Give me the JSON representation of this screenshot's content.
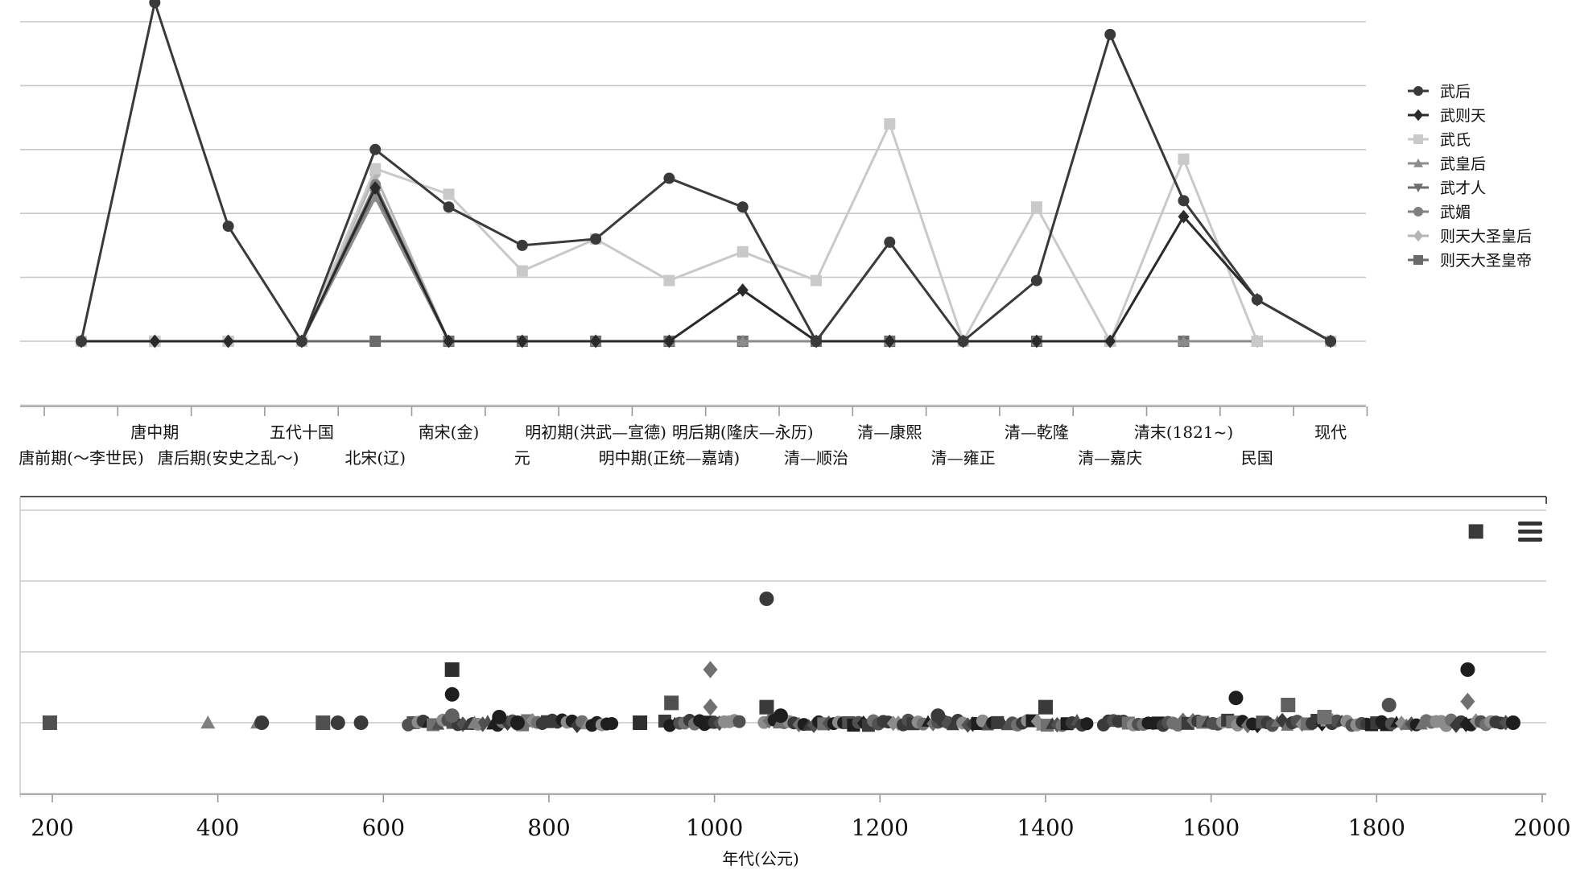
{
  "chart_data": [
    {
      "type": "line",
      "categories": [
        "唐前期(～李世民)",
        "唐中期",
        "唐后期(安史之乱～)",
        "五代十国",
        "北宋(辽)",
        "南宋(金)",
        "元",
        "明初期(洪武—宣德)",
        "明中期(正统—嘉靖)",
        "明后期(隆庆—永历)",
        "清—顺治",
        "清—康熙",
        "清—雍正",
        "清—乾隆",
        "清—嘉庆",
        "清末(1821~)",
        "民国",
        "现代"
      ],
      "ylim": [
        -1,
        5.3
      ],
      "grid": true,
      "legend_position": "right",
      "series": [
        {
          "name": "武后",
          "color": "#3a3a3a",
          "marker": "circle",
          "values": [
            0,
            5.3,
            1.8,
            0,
            3,
            2.1,
            1.5,
            1.6,
            2.55,
            2.1,
            0,
            1.55,
            0,
            0.95,
            4.8,
            2.2,
            0.65,
            0
          ]
        },
        {
          "name": "武则天",
          "color": "#2a2a2a",
          "marker": "diamond",
          "values": [
            0,
            0,
            0,
            0,
            2.4,
            0,
            0,
            0,
            0,
            0.8,
            0,
            0,
            0,
            0,
            0,
            1.95,
            0.65,
            0
          ]
        },
        {
          "name": "武氏",
          "color": "#c9c9c9",
          "marker": "square",
          "values": [
            0,
            0,
            0,
            0,
            2.7,
            2.3,
            1.1,
            1.6,
            0.95,
            1.4,
            0.95,
            3.4,
            0,
            2.1,
            0,
            2.85,
            0,
            0
          ]
        },
        {
          "name": "武皇后",
          "color": "#8c8c8c",
          "marker": "triangle",
          "values": [
            0,
            0,
            0,
            0,
            2.25,
            0,
            0,
            0,
            0,
            0,
            0,
            0,
            0,
            0,
            0,
            0,
            0,
            0
          ]
        },
        {
          "name": "武才人",
          "color": "#6e6e6e",
          "marker": "triangle-down",
          "values": [
            0,
            0,
            0,
            0,
            2.3,
            0,
            0,
            0,
            0,
            0,
            0,
            0,
            0,
            0,
            0,
            0,
            0,
            0
          ]
        },
        {
          "name": "武媚",
          "color": "#808080",
          "marker": "circle",
          "values": [
            0,
            0,
            0,
            0,
            2.45,
            0,
            0,
            0,
            0,
            0,
            0,
            0,
            0,
            0,
            0,
            0,
            0,
            0
          ]
        },
        {
          "name": "则天大圣皇后",
          "color": "#b5b5b5",
          "marker": "diamond",
          "values": [
            0,
            0,
            0,
            0,
            2.6,
            0,
            0,
            0,
            0,
            0,
            0,
            0,
            0,
            0,
            0,
            0,
            0,
            0
          ]
        },
        {
          "name": "则天大圣皇帝",
          "color": "#6a6a6a",
          "marker": "square",
          "values": [
            0,
            0,
            0,
            0,
            0,
            0,
            0,
            0,
            0,
            0,
            0,
            0,
            0,
            0,
            0,
            0,
            0,
            0
          ]
        }
      ]
    },
    {
      "type": "scatter",
      "xlabel": "年代(公元)",
      "xlim": [
        180,
        2000
      ],
      "ylim": [
        -1,
        3.3
      ],
      "xticks": [
        200,
        400,
        600,
        800,
        1000,
        1200,
        1400,
        1600,
        1800,
        2000
      ],
      "grid": true,
      "points": [
        {
          "x": 197,
          "y": 0,
          "m": "square",
          "c": "#505050"
        },
        {
          "x": 388,
          "y": 0,
          "m": "triangle",
          "c": "#808080"
        },
        {
          "x": 448,
          "y": 0,
          "m": "triangle",
          "c": "#808080"
        },
        {
          "x": 453,
          "y": 0,
          "m": "circle",
          "c": "#3a3a3a"
        },
        {
          "x": 527,
          "y": 0,
          "m": "square",
          "c": "#505050"
        },
        {
          "x": 545,
          "y": 0,
          "m": "circle",
          "c": "#3a3a3a"
        },
        {
          "x": 573,
          "y": 0,
          "m": "circle",
          "c": "#3a3a3a"
        },
        {
          "x": 683,
          "y": 0.75,
          "m": "square",
          "c": "#2e2e2e"
        },
        {
          "x": 683,
          "y": 0.4,
          "m": "circle",
          "c": "#1e1e1e"
        },
        {
          "x": 683,
          "y": 0.1,
          "m": "circle",
          "c": "#606060"
        },
        {
          "x": 710,
          "y": 0,
          "m": "triangle",
          "c": "#808080"
        },
        {
          "x": 740,
          "y": 0.08,
          "m": "circle",
          "c": "#1e1e1e"
        },
        {
          "x": 762,
          "y": 0,
          "m": "circle",
          "c": "#1e1e1e"
        },
        {
          "x": 910,
          "y": 0,
          "m": "square",
          "c": "#2e2e2e"
        },
        {
          "x": 948,
          "y": 0.28,
          "m": "square",
          "c": "#505050"
        },
        {
          "x": 995,
          "y": 0.75,
          "m": "diamond",
          "c": "#707070"
        },
        {
          "x": 995,
          "y": 0.22,
          "m": "diamond",
          "c": "#707070"
        },
        {
          "x": 1063,
          "y": 1.75,
          "m": "circle",
          "c": "#3a3a3a"
        },
        {
          "x": 1063,
          "y": 0.22,
          "m": "square",
          "c": "#3a3a3a"
        },
        {
          "x": 1080,
          "y": 0.1,
          "m": "circle",
          "c": "#1e1e1e"
        },
        {
          "x": 1270,
          "y": 0.1,
          "m": "circle",
          "c": "#3a3a3a"
        },
        {
          "x": 1400,
          "y": 0.22,
          "m": "square",
          "c": "#3a3a3a"
        },
        {
          "x": 1630,
          "y": 0.35,
          "m": "circle",
          "c": "#1e1e1e"
        },
        {
          "x": 1693,
          "y": 0.25,
          "m": "square",
          "c": "#606060"
        },
        {
          "x": 1737,
          "y": 0.08,
          "m": "square",
          "c": "#707070"
        },
        {
          "x": 1815,
          "y": 0.25,
          "m": "circle",
          "c": "#505050"
        },
        {
          "x": 1910,
          "y": 0.75,
          "m": "circle",
          "c": "#1e1e1e"
        },
        {
          "x": 1910,
          "y": 0.3,
          "m": "diamond",
          "c": "#707070"
        },
        {
          "x": 1920,
          "y": 2.7,
          "m": "square",
          "c": "#3a3a3a"
        },
        {
          "x": 1965,
          "y": 0,
          "m": "circle",
          "c": "#1e1e1e"
        }
      ],
      "baseline_clusters": [
        {
          "from": 630,
          "to": 880
        },
        {
          "from": 940,
          "to": 1035
        },
        {
          "from": 1060,
          "to": 1450
        },
        {
          "from": 1470,
          "to": 1960
        }
      ]
    }
  ],
  "icons": {
    "menu": "hamburger-menu-icon"
  }
}
